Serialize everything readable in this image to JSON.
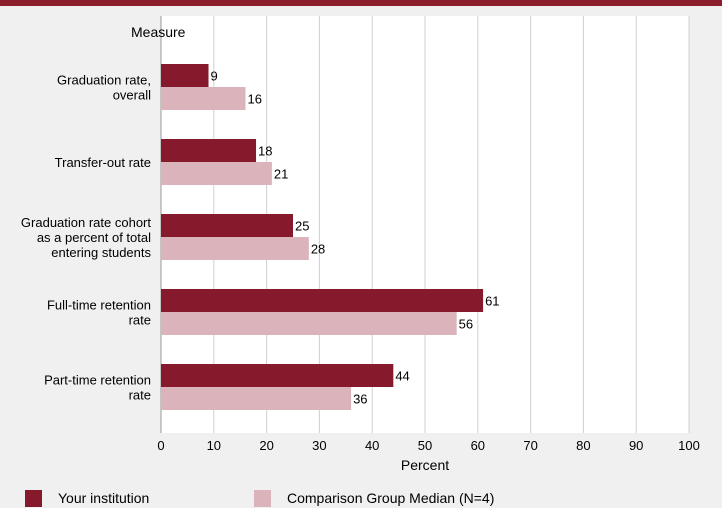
{
  "colors": {
    "top_bar": "#8c1d2b",
    "background": "#f0f0f0",
    "plot_background": "#ffffff",
    "grid": "#d0d0d0",
    "series_primary": "#86192b",
    "series_comparison": "#dbb4bb"
  },
  "legend": {
    "primary_label": "Your institution",
    "comparison_label": "Comparison Group Median (N=4)"
  },
  "chart_data": {
    "type": "bar",
    "orientation": "horizontal",
    "category_axis_title": "Measure",
    "xlabel": "Percent",
    "xlim": [
      0,
      100
    ],
    "xticks": [
      0,
      10,
      20,
      30,
      40,
      50,
      60,
      70,
      80,
      90,
      100
    ],
    "grid": true,
    "legend_position": "bottom",
    "categories": [
      [
        "Graduation rate,",
        "overall"
      ],
      [
        "Transfer-out rate"
      ],
      [
        "Graduation rate cohort",
        "as a percent of total",
        "entering students"
      ],
      [
        "Full-time retention",
        "rate"
      ],
      [
        "Part-time retention",
        "rate"
      ]
    ],
    "series": [
      {
        "name": "Your institution",
        "values": [
          9,
          18,
          25,
          61,
          44
        ]
      },
      {
        "name": "Comparison Group Median (N=4)",
        "values": [
          16,
          21,
          28,
          56,
          36
        ]
      }
    ]
  }
}
